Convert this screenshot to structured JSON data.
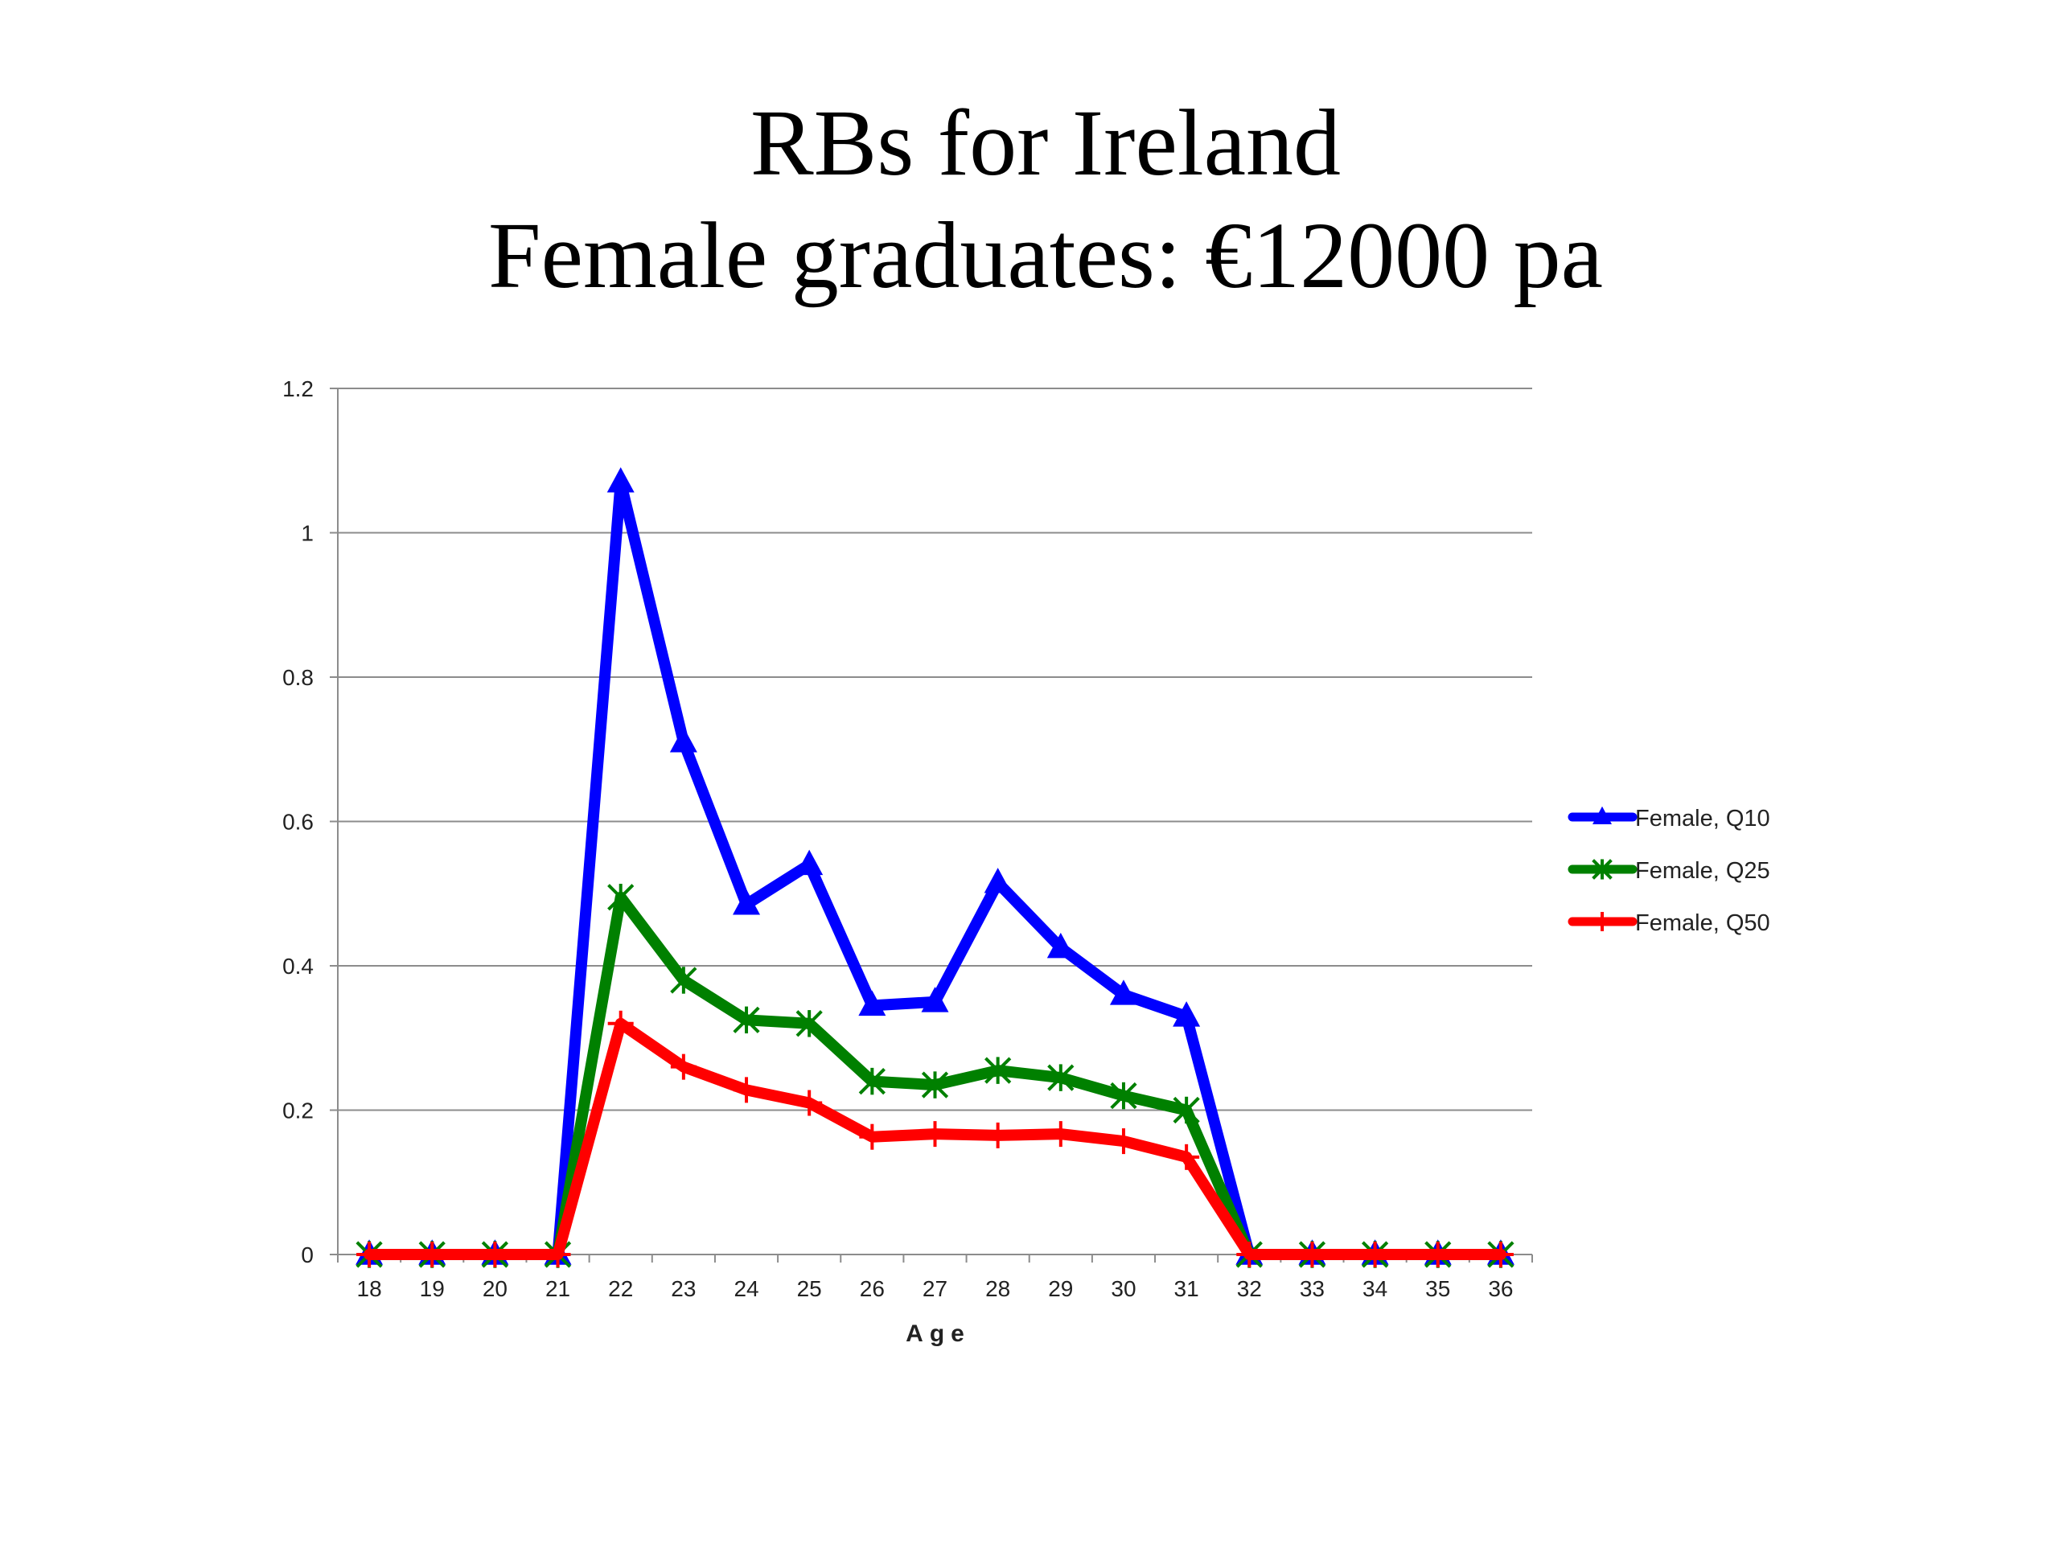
{
  "slide": {
    "title_line1": "RBs for Ireland",
    "title_line2": "Female graduates: €12000 pa"
  },
  "chart_data": {
    "type": "line",
    "x": [
      18,
      19,
      20,
      21,
      22,
      23,
      24,
      25,
      26,
      27,
      28,
      29,
      30,
      31,
      32,
      33,
      34,
      35,
      36
    ],
    "xlabel": "Age",
    "ylabel": "",
    "ylim": [
      0,
      1.2
    ],
    "yticks": [
      0,
      0.2,
      0.4,
      0.6,
      0.8,
      1,
      1.2
    ],
    "ytick_labels": [
      "0",
      "0.2",
      "0.4",
      "0.6",
      "0.8",
      "1",
      "1.2"
    ],
    "grid": true,
    "legend_position": "right",
    "series": [
      {
        "name": "Female, Q10",
        "color": "#0000ff",
        "marker": "triangle",
        "values": [
          0,
          0,
          0,
          0,
          1.07,
          0.71,
          0.485,
          0.54,
          0.345,
          0.35,
          0.515,
          0.425,
          0.36,
          0.33,
          0,
          0,
          0,
          0,
          0
        ]
      },
      {
        "name": "Female, Q25",
        "color": "#008000",
        "marker": "star",
        "values": [
          0,
          0,
          0,
          0,
          0.495,
          0.38,
          0.325,
          0.32,
          0.24,
          0.235,
          0.255,
          0.245,
          0.22,
          0.2,
          0,
          0,
          0,
          0,
          0
        ]
      },
      {
        "name": "Female, Q50",
        "color": "#ff0000",
        "marker": "plus",
        "values": [
          0,
          0,
          0,
          0,
          0.32,
          0.26,
          0.228,
          0.21,
          0.163,
          0.167,
          0.165,
          0.167,
          0.157,
          0.135,
          0,
          0,
          0,
          0,
          0
        ]
      }
    ]
  }
}
